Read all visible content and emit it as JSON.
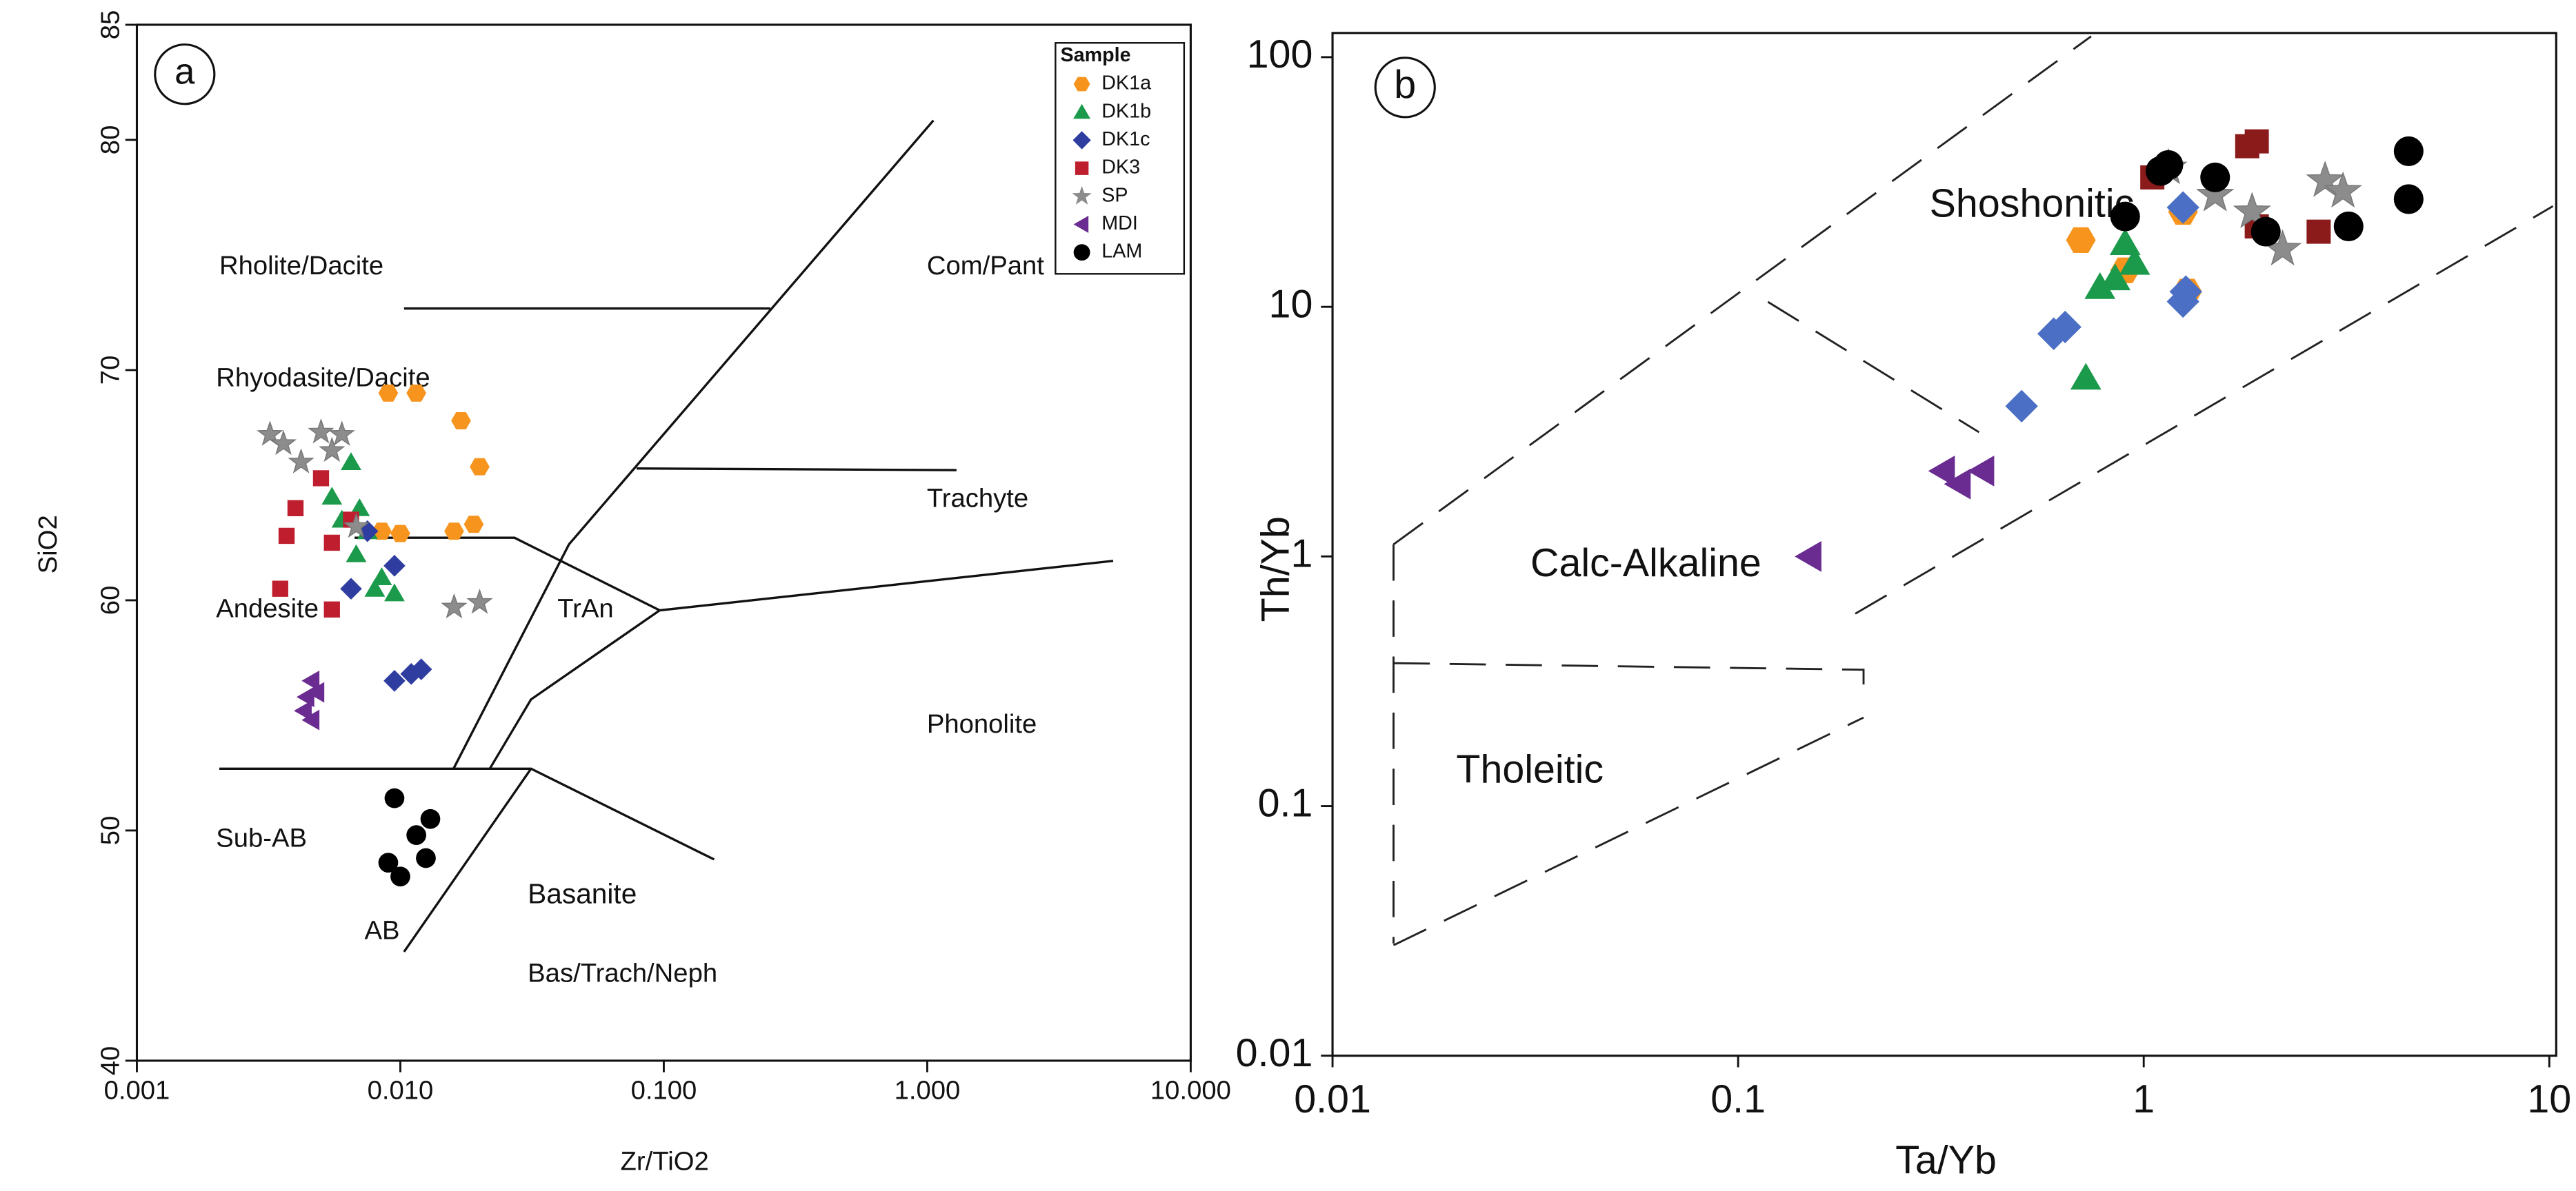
{
  "chart_data": [
    {
      "type": "scatter",
      "xlabel": "Zr/TiO2",
      "ylabel": "SiO2",
      "xscale": "log",
      "xlim": [
        0.001,
        10
      ],
      "ylim": [
        40,
        85
      ],
      "xticks": [
        0.001,
        {
          "value": 0.01,
          "label": "0.010"
        },
        {
          "value": 0.1,
          "label": "0.100"
        },
        {
          "value": 1,
          "label": "1.000"
        },
        {
          "value": 10,
          "label": "10.000"
        }
      ],
      "yticks": [
        40,
        50,
        60,
        70,
        80,
        85
      ],
      "legend_title": "Sample",
      "legend": "upper right",
      "annotations": [
        "a",
        "Rholite/Dacite",
        "Com/Pant",
        "Rhyodasite/Dacite",
        "Trachyte",
        "Andesite",
        "TrAn",
        "Phonolite",
        "Sub-AB",
        "Basanite",
        "AB",
        "Bas/Trach/Neph"
      ],
      "series": [
        {
          "name": "DK1a",
          "color": "#f7941d",
          "marker": "hexagon",
          "x": [
            0.009,
            0.0115,
            0.017,
            0.02,
            0.016,
            0.019,
            0.01,
            0.0085
          ],
          "values": [
            69,
            69,
            67.8,
            65.8,
            63,
            63.3,
            62.9,
            63
          ]
        },
        {
          "name": "DK1b",
          "color": "#1a9a4a",
          "marker": "triangle",
          "x": [
            0.0065,
            0.0055,
            0.006,
            0.007,
            0.0075,
            0.0068,
            0.008,
            0.0095,
            0.0085
          ],
          "values": [
            66,
            64.5,
            63.5,
            64,
            63,
            62,
            60.5,
            60.3,
            61
          ]
        },
        {
          "name": "DK1c",
          "color": "#2e3d9f",
          "marker": "diamond",
          "x": [
            0.0075,
            0.0065,
            0.0095,
            0.0095,
            0.011,
            0.012
          ],
          "values": [
            63,
            60.5,
            61.5,
            56.5,
            56.8,
            57
          ]
        },
        {
          "name": "DK3",
          "color": "#be1e2d",
          "marker": "square",
          "x": [
            0.0035,
            0.0037,
            0.004,
            0.005,
            0.0055,
            0.0055,
            0.0065
          ],
          "values": [
            60.5,
            62.8,
            64,
            65.3,
            62.5,
            59.6,
            63.5
          ]
        },
        {
          "name": "SP",
          "color": "#8c8c8c",
          "marker": "star",
          "x": [
            0.0032,
            0.0036,
            0.0042,
            0.005,
            0.006,
            0.0055,
            0.0068,
            0.016,
            0.02
          ],
          "values": [
            67.2,
            66.8,
            66,
            67.3,
            67.2,
            66.5,
            63.2,
            59.7,
            59.9
          ]
        },
        {
          "name": "MDI",
          "color": "#6a2c91",
          "marker": "triangle-left",
          "x": [
            0.0046,
            0.0044,
            0.0043,
            0.0046,
            0.0048
          ],
          "values": [
            56.5,
            55.8,
            55.2,
            54.8,
            56
          ]
        },
        {
          "name": "LAM",
          "color": "#000000",
          "marker": "circle",
          "x": [
            0.0095,
            0.009,
            0.01,
            0.0115,
            0.013,
            0.0125
          ],
          "values": [
            51.4,
            48.6,
            48,
            49.8,
            50.5,
            48.8
          ]
        }
      ]
    },
    {
      "type": "scatter",
      "xlabel": "Ta/Yb",
      "ylabel": "Th/Yb",
      "xscale": "log",
      "yscale": "log",
      "xlim": [
        0.01,
        10.4
      ],
      "ylim": [
        0.01,
        125
      ],
      "xticks": [
        0.01,
        0.1,
        1,
        10
      ],
      "yticks": [
        0.01,
        0.1,
        1,
        10,
        100
      ],
      "annotations": [
        "b",
        "Shoshonitic",
        "Calc-Alkaline",
        "Tholeitic"
      ],
      "series": [
        {
          "name": "DK1a",
          "color": "#f7941d",
          "marker": "hexagon",
          "x": [
            0.7,
            0.9,
            1.25,
            1.28
          ],
          "values": [
            18.5,
            14,
            24,
            11.5
          ]
        },
        {
          "name": "DK1b",
          "color": "#1a9a4a",
          "marker": "triangle",
          "x": [
            0.9,
            0.85,
            0.78,
            0.72,
            0.95
          ],
          "values": [
            18,
            13,
            12,
            5.2,
            15
          ]
        },
        {
          "name": "DK1c",
          "color": "#4a6fc4",
          "marker": "diamond",
          "x": [
            0.5,
            0.6,
            0.64,
            1.25,
            1.25,
            1.27
          ],
          "values": [
            4,
            7.8,
            8.3,
            25,
            10.5,
            11.5
          ]
        },
        {
          "name": "DK3",
          "color": "#8b1a1a",
          "marker": "square",
          "x": [
            1.05,
            1.8,
            1.9,
            1.9,
            2.7
          ],
          "values": [
            33,
            44,
            46,
            21,
            20
          ]
        },
        {
          "name": "SP",
          "color": "#8c8c8c",
          "marker": "star",
          "x": [
            1.15,
            1.5,
            1.85,
            2.2,
            2.8,
            3.1
          ],
          "values": [
            36,
            28,
            24,
            17,
            32,
            29
          ]
        },
        {
          "name": "MDI",
          "color": "#6a2c91",
          "marker": "triangle-left",
          "x": [
            0.15,
            0.32,
            0.35,
            0.4
          ],
          "values": [
            1.0,
            2.2,
            1.95,
            2.2
          ]
        },
        {
          "name": "LAM",
          "color": "#000000",
          "marker": "circle",
          "x": [
            0.9,
            1.1,
            1.15,
            1.5,
            2,
            3.2,
            4.5,
            4.5
          ],
          "values": [
            23,
            35,
            37,
            33,
            20,
            21,
            42,
            27
          ]
        }
      ]
    }
  ]
}
